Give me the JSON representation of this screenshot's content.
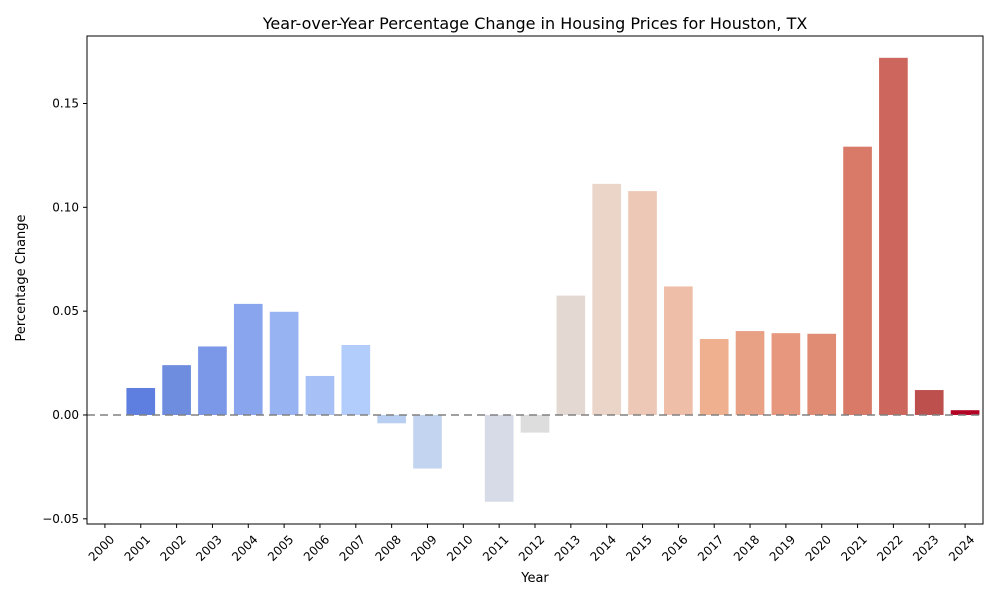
{
  "chart_data": {
    "type": "bar",
    "title": "Year-over-Year Percentage Change in Housing Prices for Houston, TX",
    "xlabel": "Year",
    "ylabel": "Percentage Change",
    "categories": [
      "2000",
      "2001",
      "2002",
      "2003",
      "2004",
      "2005",
      "2006",
      "2007",
      "2008",
      "2009",
      "2010",
      "2011",
      "2012",
      "2013",
      "2014",
      "2015",
      "2016",
      "2017",
      "2018",
      "2019",
      "2020",
      "2021",
      "2022",
      "2023",
      "2024"
    ],
    "values": [
      0.0,
      0.013,
      0.024,
      0.033,
      0.0535,
      0.0497,
      0.0188,
      0.0337,
      -0.004,
      -0.0258,
      0.0,
      -0.0418,
      -0.0085,
      0.0575,
      0.1113,
      0.1078,
      0.0619,
      0.0366,
      0.0404,
      0.0394,
      0.0391,
      0.1292,
      0.172,
      0.012,
      0.0023
    ],
    "colors": [
      "#3b4cc0",
      "#5f7fe0",
      "#6e8ddf",
      "#7b97e8",
      "#88a5ed",
      "#97b3f1",
      "#a7c1f7",
      "#b2ccfb",
      "#b8cff2",
      "#c3d4f0",
      "#cdd6ea",
      "#d6dbe7",
      "#dddddd",
      "#e4d8d2",
      "#ead5c8",
      "#edc8b6",
      "#efbea8",
      "#eeb08f",
      "#e9a186",
      "#e6977d",
      "#e08b74",
      "#d87a67",
      "#cd665c",
      "#bd4f4c",
      "#b40426"
    ],
    "yticks": [
      -0.05,
      0.0,
      0.05,
      0.1,
      0.15
    ],
    "ytick_labels": [
      "−0.05",
      "0.00",
      "0.05",
      "0.10",
      "0.15"
    ],
    "ylim": [
      -0.0525,
      0.1825
    ],
    "zero_line_color": "#808080",
    "grid": false,
    "legend": "none"
  }
}
